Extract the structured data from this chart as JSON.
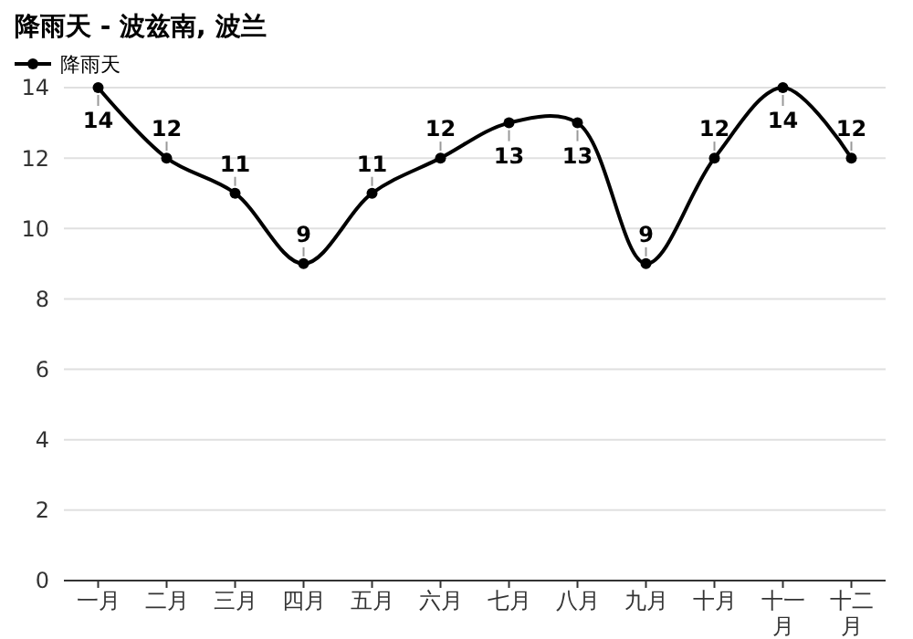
{
  "chart_data": {
    "type": "line",
    "title": "降雨天 - 波兹南, 波兰",
    "categories": [
      "一月",
      "二月",
      "三月",
      "四月",
      "五月",
      "六月",
      "七月",
      "八月",
      "九月",
      "十月",
      "十一月",
      "十二月"
    ],
    "series": [
      {
        "name": "降雨天",
        "color": "#000000",
        "values": [
          14,
          12,
          11,
          9,
          11,
          12,
          13,
          13,
          9,
          12,
          14,
          12
        ]
      }
    ],
    "ylim": [
      0,
      14
    ],
    "yticks": [
      0,
      2,
      4,
      6,
      8,
      10,
      12,
      14
    ],
    "grid": "y",
    "legend": "top left",
    "marker": "circle",
    "data_labels": true
  }
}
